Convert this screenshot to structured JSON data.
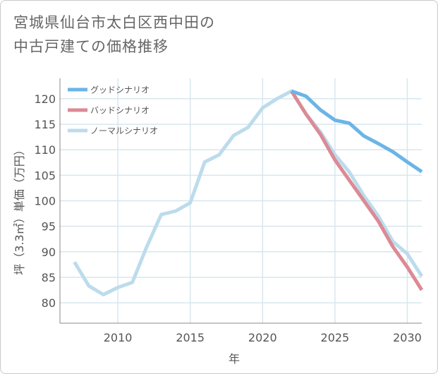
{
  "chart_data": {
    "type": "line",
    "title_line1": "宮城県仙台市太白区西中田の",
    "title_line2": "中古戸建ての価格推移",
    "xlabel": "年",
    "ylabel": "坪（3.3㎡）単価（万円）",
    "xlim": [
      2006,
      2031
    ],
    "ylim": [
      76,
      124
    ],
    "xticks": [
      2010,
      2015,
      2020,
      2025,
      2030
    ],
    "yticks": [
      80,
      85,
      90,
      95,
      100,
      105,
      110,
      115,
      120
    ],
    "series": [
      {
        "name": "ノーマルシナリオ",
        "color": "#bcdcec",
        "x": [
          2007,
          2008,
          2009,
          2010,
          2011,
          2012,
          2013,
          2014,
          2015,
          2016,
          2017,
          2018,
          2019,
          2020,
          2021,
          2022,
          2023,
          2024,
          2025,
          2026,
          2027,
          2028,
          2029,
          2030,
          2031
        ],
        "values": [
          88.0,
          83.3,
          81.6,
          83.0,
          84.0,
          91.0,
          97.3,
          98.0,
          99.6,
          107.6,
          109.0,
          112.8,
          114.4,
          118.2,
          120.0,
          121.5,
          117.0,
          113.5,
          109.0,
          105.6,
          101.0,
          97.0,
          92.0,
          89.6,
          85.2
        ]
      },
      {
        "name": "バッドシナリオ",
        "color": "#dc8a94",
        "x": [
          2022,
          2023,
          2024,
          2025,
          2026,
          2027,
          2028,
          2029,
          2030,
          2031
        ],
        "values": [
          121.5,
          117.0,
          113.0,
          108.0,
          104.0,
          100.0,
          96.0,
          91.0,
          87.0,
          82.5
        ]
      },
      {
        "name": "グッドシナリオ",
        "color": "#6cb4e6",
        "x": [
          2022,
          2023,
          2024,
          2025,
          2026,
          2027,
          2028,
          2029,
          2030,
          2031
        ],
        "values": [
          121.5,
          120.5,
          117.8,
          115.8,
          115.2,
          112.7,
          111.2,
          109.6,
          107.6,
          105.7
        ]
      }
    ],
    "legend": [
      "グッドシナリオ",
      "バッドシナリオ",
      "ノーマルシナリオ"
    ]
  }
}
